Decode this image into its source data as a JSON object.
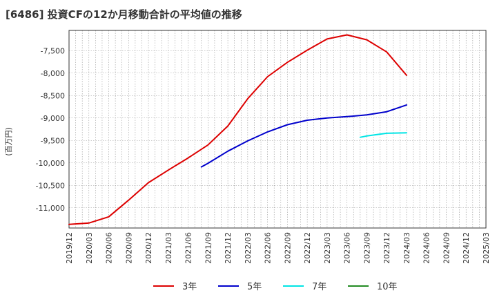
{
  "chart_data": {
    "type": "line",
    "title": "[6486]  投資CFの12か月移動合計の平均値の推移",
    "ylabel": "(百万円)",
    "xlabel": "",
    "ylim": [
      -11450,
      -7050
    ],
    "xlim": [
      "2019-12",
      "2025-03"
    ],
    "grid": true,
    "legend_position": "bottom",
    "y_ticks": [
      -11000,
      -10500,
      -10000,
      -9500,
      -9000,
      -8500,
      -8000,
      -7500
    ],
    "y_tick_labels": [
      "-11,000",
      "-10,500",
      "-10,000",
      "-9,500",
      "-9,000",
      "-8,500",
      "-8,000",
      "-7,500"
    ],
    "x_tick_labels": [
      "2019/12",
      "2020/03",
      "2020/06",
      "2020/09",
      "2020/12",
      "2021/03",
      "2021/06",
      "2021/09",
      "2021/12",
      "2022/03",
      "2022/06",
      "2022/09",
      "2022/12",
      "2023/03",
      "2023/06",
      "2023/09",
      "2023/12",
      "2024/03",
      "2024/06",
      "2024/09",
      "2024/12",
      "2025/03"
    ],
    "series": [
      {
        "name": "3年",
        "color": "#dd0000",
        "x": [
          "2019-12",
          "2020-03",
          "2020-06",
          "2020-09",
          "2020-12",
          "2021-03",
          "2021-06",
          "2021-09",
          "2021-12",
          "2022-03",
          "2022-06",
          "2022-09",
          "2022-12",
          "2023-03",
          "2023-06",
          "2023-09",
          "2023-12",
          "2024-03"
        ],
        "values": [
          -11370,
          -11340,
          -11200,
          -10830,
          -10440,
          -10160,
          -9890,
          -9600,
          -9180,
          -8570,
          -8080,
          -7760,
          -7490,
          -7240,
          -7150,
          -7260,
          -7530,
          -8050
        ]
      },
      {
        "name": "5年",
        "color": "#0000cc",
        "x": [
          "2021-08",
          "2021-09",
          "2021-12",
          "2022-03",
          "2022-06",
          "2022-09",
          "2022-12",
          "2023-03",
          "2023-06",
          "2023-09",
          "2023-12",
          "2024-03"
        ],
        "values": [
          -10090,
          -10010,
          -9740,
          -9510,
          -9310,
          -9150,
          -9050,
          -9000,
          -8970,
          -8930,
          -8860,
          -8710
        ]
      },
      {
        "name": "7年",
        "color": "#00e5e5",
        "x": [
          "2023-08",
          "2023-09",
          "2023-12",
          "2024-03"
        ],
        "values": [
          -9430,
          -9400,
          -9340,
          -9330
        ]
      },
      {
        "name": "10年",
        "color": "#228b22",
        "x": [],
        "values": []
      }
    ]
  }
}
